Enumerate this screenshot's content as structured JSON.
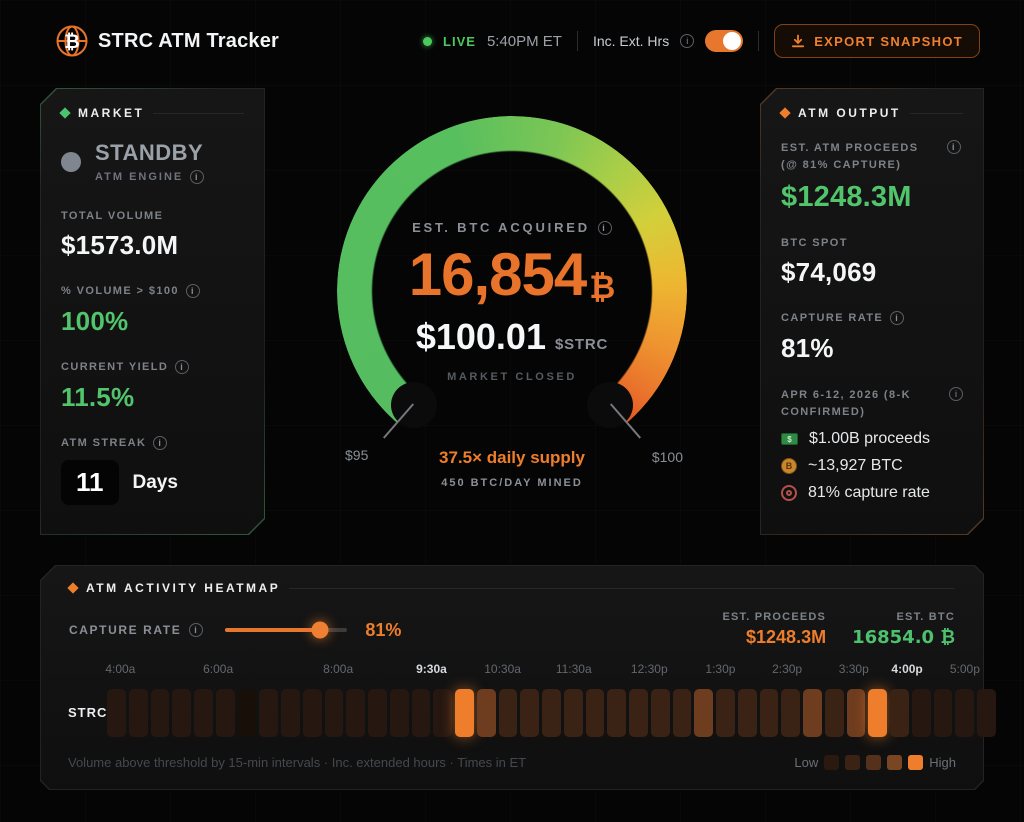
{
  "header": {
    "title": "STRC ATM Tracker",
    "live_label": "LIVE",
    "time": "5:40PM ET",
    "ext_hours_label": "Inc. Ext. Hrs",
    "ext_hours_on": true,
    "export_label": "EXPORT SNAPSHOT"
  },
  "market_panel": {
    "title": "MARKET",
    "status": {
      "label": "STANDBY",
      "sublabel": "ATM ENGINE"
    },
    "metrics": [
      {
        "label": "TOTAL VOLUME",
        "value": "$1573.0M"
      },
      {
        "label": "% VOLUME > $100",
        "value": "100%"
      },
      {
        "label": "CURRENT YIELD",
        "value": "11.5%"
      }
    ],
    "streak": {
      "label": "ATM STREAK",
      "value": "11",
      "unit": "Days"
    }
  },
  "gauge": {
    "label": "EST. BTC ACQUIRED",
    "value": "16,854",
    "unit": "₿",
    "price": "$100.01",
    "ticker": "$STRC",
    "status": "MARKET CLOSED",
    "min_label": "$95",
    "max_label": "$100",
    "supply_line": "37.5× daily supply",
    "mined_line": "450 BTC/DAY MINED"
  },
  "output_panel": {
    "title": "ATM OUTPUT",
    "proceeds": {
      "label": "EST. ATM PROCEEDS (@ 81% CAPTURE)",
      "value": "$1248.3M"
    },
    "btc_spot": {
      "label": "BTC SPOT",
      "value": "$74,069"
    },
    "capture": {
      "label": "CAPTURE RATE",
      "value": "81%"
    },
    "filing": {
      "label": "APR 6-12, 2026 (8-K CONFIRMED)",
      "items": [
        {
          "icon": "banknote-icon",
          "text": "$1.00B proceeds"
        },
        {
          "icon": "btc-coin-icon",
          "text": "~13,927 BTC"
        },
        {
          "icon": "target-icon",
          "text": "81% capture rate"
        }
      ]
    }
  },
  "heatmap": {
    "title": "ATM ACTIVITY HEATMAP",
    "capture_label": "CAPTURE RATE",
    "capture_value": "81%",
    "slider_pct": 78,
    "est_proceeds_label": "EST. PROCEEDS",
    "est_proceeds_value": "$1248.3M",
    "est_btc_label": "EST. BTC",
    "est_btc_value": "16854.0 ₿",
    "row_label": "STRC",
    "time_labels": [
      {
        "t": "4:00a",
        "p": 1.5
      },
      {
        "t": "6:00a",
        "p": 12.5
      },
      {
        "t": "8:00a",
        "p": 26
      },
      {
        "t": "9:30a",
        "p": 36.5,
        "strong": true
      },
      {
        "t": "10:30a",
        "p": 44.5
      },
      {
        "t": "11:30a",
        "p": 52.5
      },
      {
        "t": "12:30p",
        "p": 61
      },
      {
        "t": "1:30p",
        "p": 69
      },
      {
        "t": "2:30p",
        "p": 76.5
      },
      {
        "t": "3:30p",
        "p": 84
      },
      {
        "t": "4:00p",
        "p": 90,
        "strong": true
      },
      {
        "t": "5:00p",
        "p": 96.5
      }
    ],
    "cells": [
      1,
      1,
      1,
      1,
      1,
      1,
      0,
      1,
      1,
      1,
      1,
      1,
      1,
      1,
      1,
      1,
      4,
      3,
      2,
      2,
      2,
      2,
      2,
      2,
      2,
      2,
      2,
      3,
      2,
      2,
      2,
      2,
      3,
      2,
      3,
      4,
      2,
      1,
      1,
      1,
      1
    ],
    "level_colors": [
      "#190f09",
      "#261711",
      "#3a2315",
      "#6e3c1e",
      "#ee7e2b"
    ],
    "footer": "Volume above threshold by 15-min intervals · Inc. extended hours · Times in ET",
    "legend": {
      "low": "Low",
      "high": "High",
      "colors": [
        "#2a190f",
        "#3a2315",
        "#55301a",
        "#7a4523",
        "#ee7e2b"
      ]
    }
  },
  "colors": {
    "accent_orange": "#ee7e2b",
    "accent_green": "#4ec16e",
    "live_green": "#4cc95d",
    "value_orange": "#e8732a",
    "panel_bg": "#141414",
    "page_bg": "#050505"
  }
}
